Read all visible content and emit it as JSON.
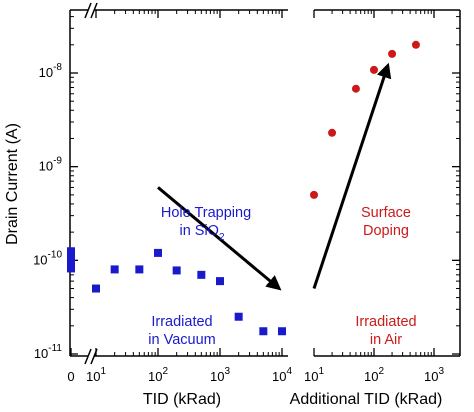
{
  "chart_data": {
    "type": "scatter",
    "ylabel": "Drain Current (A)",
    "y_scale": "log",
    "ylim": [
      1e-11,
      5e-08
    ],
    "y_ticks": [
      {
        "value": 1e-08,
        "base": "10",
        "exp": "-8"
      },
      {
        "value": 1e-09,
        "base": "10",
        "exp": "-9"
      },
      {
        "value": 1e-10,
        "base": "10",
        "exp": "-10"
      },
      {
        "value": 1e-11,
        "base": "10",
        "exp": "-11"
      }
    ],
    "panels": [
      {
        "xlabel": "TID (kRad)",
        "x_scale": "log",
        "xlim": [
          10,
          10000
        ],
        "x_zero_label": "0",
        "x_ticks": [
          {
            "value": 10,
            "base": "10",
            "exp": "1"
          },
          {
            "value": 100,
            "base": "10",
            "exp": "2"
          },
          {
            "value": 1000,
            "base": "10",
            "exp": "3"
          },
          {
            "value": 10000,
            "base": "10",
            "exp": "4"
          }
        ],
        "marker": "square",
        "color": "#1a1acc",
        "zero_points": [
          1.25e-10,
          1.1e-10,
          9.5e-11,
          8.2e-11
        ],
        "points": [
          {
            "x": 10,
            "y": 5e-11
          },
          {
            "x": 20,
            "y": 8e-11
          },
          {
            "x": 50,
            "y": 8e-11
          },
          {
            "x": 100,
            "y": 1.2e-10
          },
          {
            "x": 200,
            "y": 7.8e-11
          },
          {
            "x": 500,
            "y": 7e-11
          },
          {
            "x": 1000,
            "y": 6e-11
          },
          {
            "x": 2000,
            "y": 2.5e-11
          },
          {
            "x": 5000,
            "y": 1.75e-11
          },
          {
            "x": 10000,
            "y": 1.75e-11
          }
        ],
        "annotations": [
          {
            "lines": [
              "Hole Trapping",
              "in SiO",
              "2"
            ],
            "kind": "subscript"
          },
          {
            "lines": [
              "Irradiated",
              "in Vacuum"
            ]
          }
        ],
        "arrow": {
          "from": [
            100,
            6e-10
          ],
          "to": [
            9000,
            5e-11
          ]
        }
      },
      {
        "xlabel": "Additional TID (kRad)",
        "x_scale": "log",
        "xlim": [
          10,
          1000
        ],
        "x_ticks": [
          {
            "value": 10,
            "base": "10",
            "exp": "1"
          },
          {
            "value": 100,
            "base": "10",
            "exp": "2"
          },
          {
            "value": 1000,
            "base": "10",
            "exp": "3"
          }
        ],
        "marker": "circle",
        "color": "#cc1a1a",
        "points": [
          {
            "x": 10,
            "y": 5e-10
          },
          {
            "x": 20,
            "y": 2.3e-09
          },
          {
            "x": 50,
            "y": 6.8e-09
          },
          {
            "x": 100,
            "y": 1.08e-08
          },
          {
            "x": 200,
            "y": 1.6e-08
          },
          {
            "x": 500,
            "y": 2e-08
          }
        ],
        "annotations": [
          {
            "lines": [
              "Surface",
              "Doping"
            ]
          },
          {
            "lines": [
              "Irradiated",
              "in Air"
            ]
          }
        ],
        "arrow": {
          "from": [
            10,
            5e-11
          ],
          "to": [
            170,
            1.2e-08
          ]
        }
      }
    ]
  }
}
